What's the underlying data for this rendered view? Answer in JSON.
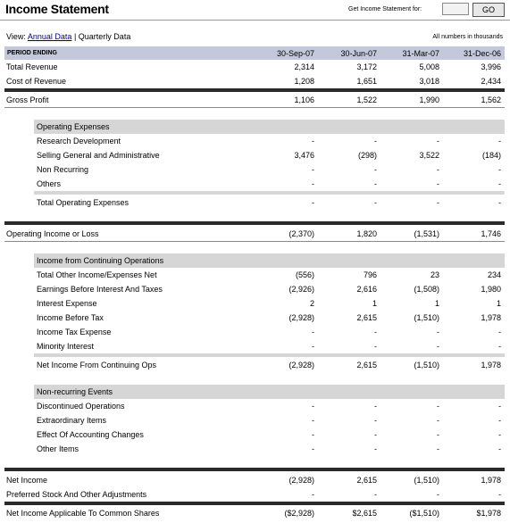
{
  "header": {
    "title": "Income Statement",
    "get_label": "Get Income Statement for:",
    "input_value": "",
    "go_label": "GO"
  },
  "view": {
    "prefix": "View:",
    "annual": "Annual Data",
    "separator": "|",
    "quarterly": "Quarterly Data",
    "note": "All numbers in thousands"
  },
  "period": {
    "label": "PERIOD ENDING",
    "dates": [
      "30-Sep-07",
      "30-Jun-07",
      "31-Mar-07",
      "31-Dec-06"
    ]
  },
  "rows": {
    "total_revenue": {
      "label": "Total Revenue",
      "v": [
        "2,314",
        "3,172",
        "5,008",
        "3,996"
      ]
    },
    "cost_of_revenue": {
      "label": "Cost of Revenue",
      "v": [
        "1,208",
        "1,651",
        "3,018",
        "2,434"
      ]
    },
    "gross_profit": {
      "label": "Gross Profit",
      "v": [
        "1,106",
        "1,522",
        "1,990",
        "1,562"
      ]
    },
    "opex_head": {
      "label": "Operating Expenses"
    },
    "research": {
      "label": "Research Development",
      "v": [
        "-",
        "-",
        "-",
        "-"
      ]
    },
    "sga": {
      "label": "Selling General and Administrative",
      "v": [
        "3,476",
        "(298)",
        "3,522",
        "(184)"
      ]
    },
    "non_recurring": {
      "label": "Non Recurring",
      "v": [
        "-",
        "-",
        "-",
        "-"
      ]
    },
    "others": {
      "label": "Others",
      "v": [
        "-",
        "-",
        "-",
        "-"
      ]
    },
    "total_opex": {
      "label": "Total Operating Expenses",
      "v": [
        "-",
        "-",
        "-",
        "-"
      ]
    },
    "operating_income": {
      "label": "Operating Income or Loss",
      "v": [
        "(2,370)",
        "1,820",
        "(1,531)",
        "1,746"
      ]
    },
    "cont_head": {
      "label": "Income from Continuing Operations"
    },
    "total_other": {
      "label": "Total Other Income/Expenses Net",
      "v": [
        "(556)",
        "796",
        "23",
        "234"
      ]
    },
    "ebit": {
      "label": "Earnings Before Interest And Taxes",
      "v": [
        "(2,926)",
        "2,616",
        "(1,508)",
        "1,980"
      ]
    },
    "interest": {
      "label": "Interest Expense",
      "v": [
        "2",
        "1",
        "1",
        "1"
      ]
    },
    "ibt": {
      "label": "Income Before Tax",
      "v": [
        "(2,928)",
        "2,615",
        "(1,510)",
        "1,978"
      ]
    },
    "tax": {
      "label": "Income Tax Expense",
      "v": [
        "-",
        "-",
        "-",
        "-"
      ]
    },
    "minority": {
      "label": "Minority Interest",
      "v": [
        "-",
        "-",
        "-",
        "-"
      ]
    },
    "net_cont": {
      "label": "Net Income From Continuing Ops",
      "v": [
        "(2,928)",
        "2,615",
        "(1,510)",
        "1,978"
      ]
    },
    "nonrec_head": {
      "label": "Non-recurring Events"
    },
    "discontinued": {
      "label": "Discontinued Operations",
      "v": [
        "-",
        "-",
        "-",
        "-"
      ]
    },
    "extraordinary": {
      "label": "Extraordinary Items",
      "v": [
        "-",
        "-",
        "-",
        "-"
      ]
    },
    "accounting": {
      "label": "Effect Of Accounting Changes",
      "v": [
        "-",
        "-",
        "-",
        "-"
      ]
    },
    "other_items": {
      "label": "Other Items",
      "v": [
        "-",
        "-",
        "-",
        "-"
      ]
    },
    "net_income": {
      "label": "Net Income",
      "v": [
        "(2,928)",
        "2,615",
        "(1,510)",
        "1,978"
      ]
    },
    "preferred": {
      "label": "Preferred Stock And Other Adjustments",
      "v": [
        "-",
        "-",
        "-",
        "-"
      ]
    },
    "net_common": {
      "label": "Net Income Applicable To Common Shares",
      "v": [
        "($2,928)",
        "$2,615",
        "($1,510)",
        "$1,978"
      ]
    }
  }
}
